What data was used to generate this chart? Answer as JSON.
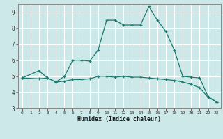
{
  "title": "",
  "xlabel": "Humidex (Indice chaleur)",
  "ylabel": "",
  "background_color": "#cce8e8",
  "grid_color": "#ffffff",
  "line_color": "#1a7a6e",
  "xlim": [
    -0.5,
    23.5
  ],
  "ylim": [
    3,
    9.5
  ],
  "yticks": [
    3,
    4,
    5,
    6,
    7,
    8,
    9
  ],
  "xticks": [
    0,
    1,
    2,
    3,
    4,
    5,
    6,
    7,
    8,
    9,
    10,
    11,
    12,
    13,
    14,
    15,
    16,
    17,
    18,
    19,
    20,
    21,
    22,
    23
  ],
  "series1_x": [
    0,
    2,
    3,
    4,
    5,
    6,
    7,
    8,
    9,
    10,
    11,
    12,
    13,
    14,
    15,
    16,
    17,
    18,
    19,
    20,
    21,
    22,
    23
  ],
  "series1_y": [
    4.9,
    4.85,
    4.9,
    4.65,
    4.7,
    4.8,
    4.8,
    4.85,
    5.0,
    5.0,
    4.95,
    5.0,
    4.95,
    4.95,
    4.9,
    4.85,
    4.8,
    4.75,
    4.65,
    4.5,
    4.3,
    3.7,
    3.4
  ],
  "series2_x": [
    0,
    2,
    3,
    4,
    5,
    6,
    7,
    8,
    9,
    10,
    11,
    12,
    13,
    14,
    15,
    16,
    17,
    18,
    19,
    20,
    21,
    22,
    23
  ],
  "series2_y": [
    4.9,
    5.35,
    4.9,
    4.65,
    5.0,
    6.0,
    6.0,
    5.95,
    6.65,
    8.5,
    8.5,
    8.2,
    8.2,
    8.2,
    9.35,
    8.5,
    7.8,
    6.65,
    5.0,
    4.95,
    4.9,
    3.75,
    3.4
  ]
}
